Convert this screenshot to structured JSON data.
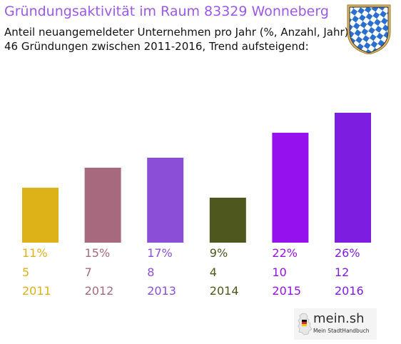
{
  "header": {
    "title": "Gründungsaktivität im Raum 83329 Wonneberg",
    "subtitle_line1": "Anteil neuangemeldeter Unternehmen pro Jahr (%, Anzahl, Jahr)",
    "subtitle_line2": "46 Gründungen zwischen 2011-2016, Trend aufsteigend:"
  },
  "crest": {
    "icon": "bavarian-coat-of-arms-icon",
    "colors": [
      "#2a6fd0",
      "#ffffff"
    ]
  },
  "chart_data": {
    "type": "bar",
    "title": "Gründungsaktivität im Raum 83329 Wonneberg",
    "categories": [
      "2011",
      "2012",
      "2013",
      "2014",
      "2015",
      "2016"
    ],
    "percent_labels": [
      "11%",
      "15%",
      "17%",
      "9%",
      "22%",
      "26%"
    ],
    "count_labels": [
      "5",
      "7",
      "8",
      "4",
      "10",
      "12"
    ],
    "values": [
      11,
      15,
      17,
      9,
      22,
      26
    ],
    "colors": [
      "#ddb118",
      "#a6697d",
      "#8a4fd6",
      "#4d571e",
      "#9512ee",
      "#7c1de0"
    ],
    "ylim": [
      0,
      26
    ],
    "grid": false,
    "legend": "none"
  },
  "logo": {
    "name": "mein.sh",
    "tagline": "Mein StadtHandbuch",
    "icon": "germany-map-icon"
  }
}
